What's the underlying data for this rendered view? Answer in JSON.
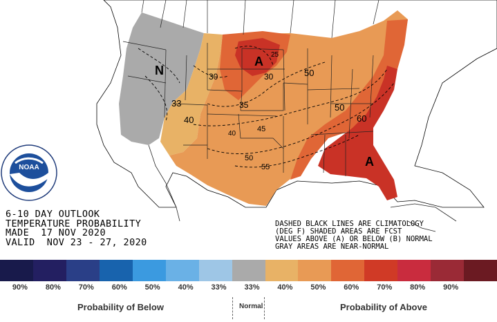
{
  "title_lines": [
    "6-10 DAY OUTLOOK",
    "TEMPERATURE PROBABILITY",
    "MADE  17 NOV 2020",
    "VALID  NOV 23 - 27, 2020"
  ],
  "notes": [
    "DASHED BLACK LINES ARE CLIMATOLOGY",
    "(DEG F) SHADED AREAS ARE FCST",
    "VALUES ABOVE (A) OR BELOW (B) NORMAL",
    "GRAY AREAS ARE NEAR-NORMAL"
  ],
  "logo": {
    "text": "NOAA",
    "ring_text": "NATIONAL OCEANIC AND ATMOSPHERIC ADMINISTRATION · U.S. DEPARTMENT OF COMMERCE"
  },
  "map_labels": {
    "near_normal": "N",
    "above_north": "A",
    "above_southeast": "A",
    "climatology": [
      "25",
      "30",
      "30",
      "33",
      "35",
      "40",
      "45",
      "50",
      "50",
      "50",
      "55",
      "60",
      "40"
    ]
  },
  "legend": {
    "colors": [
      "#181a4b",
      "#231f61",
      "#2a3f87",
      "#1863ad",
      "#3b9ae0",
      "#6ab1e6",
      "#9ec6e6",
      "#aaaaaa",
      "#e8b266",
      "#e89a55",
      "#e06636",
      "#d03a26",
      "#c92c3e",
      "#9a2a36",
      "#6b1a22"
    ],
    "ticks": [
      "90%",
      "80%",
      "70%",
      "60%",
      "50%",
      "40%",
      "33%",
      "33%",
      "40%",
      "50%",
      "60%",
      "70%",
      "80%",
      "90%",
      ""
    ],
    "below_label": "Probability of Below",
    "normal_label": "Normal",
    "above_label": "Probability of Above"
  }
}
